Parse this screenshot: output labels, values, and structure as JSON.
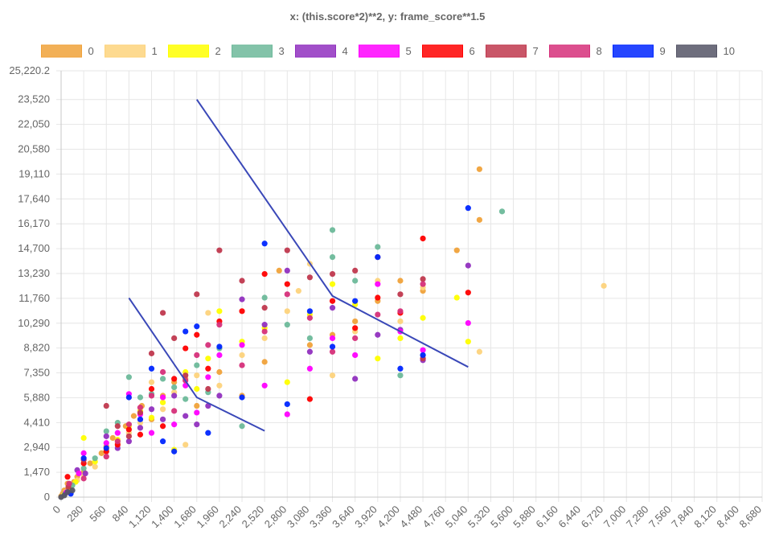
{
  "chart_data": {
    "type": "scatter",
    "title": "x: (this.score*2)**2, y: frame_score**1.5",
    "xlim": [
      0,
      8680
    ],
    "ylim": [
      0,
      25220.2
    ],
    "x_ticks": [
      "0",
      "280",
      "560",
      "840",
      "1,120",
      "1,400",
      "1,680",
      "1,960",
      "2,240",
      "2,520",
      "2,800",
      "3,080",
      "3,360",
      "3,640",
      "3,920",
      "4,200",
      "4,480",
      "4,760",
      "5,040",
      "5,320",
      "5,600",
      "5,880",
      "6,160",
      "6,440",
      "6,720",
      "7,000",
      "7,280",
      "7,560",
      "7,840",
      "8,120",
      "8,400",
      "8,680"
    ],
    "y_ticks": [
      "0",
      "1,470",
      "2,940",
      "4,410",
      "5,880",
      "7,350",
      "8,820",
      "10,290",
      "11,760",
      "13,230",
      "14,700",
      "16,170",
      "17,640",
      "19,110",
      "20,580",
      "22,050",
      "23,520",
      "25,220.2"
    ],
    "grid": true,
    "legend_position": "top",
    "series": [
      {
        "name": "0",
        "color": "#f0a23a",
        "points": [
          [
            0,
            50
          ],
          [
            20,
            200
          ],
          [
            40,
            400
          ],
          [
            80,
            800
          ],
          [
            100,
            500
          ],
          [
            160,
            900
          ],
          [
            200,
            1200
          ],
          [
            280,
            1500
          ],
          [
            360,
            2000
          ],
          [
            500,
            2600
          ],
          [
            560,
            3000
          ],
          [
            640,
            3500
          ],
          [
            800,
            4200
          ],
          [
            900,
            4800
          ],
          [
            1000,
            5400
          ],
          [
            1120,
            4600
          ],
          [
            1260,
            6000
          ],
          [
            1400,
            6800
          ],
          [
            1540,
            7000
          ],
          [
            1680,
            5400
          ],
          [
            1960,
            7400
          ],
          [
            2240,
            6000
          ],
          [
            2520,
            8000
          ],
          [
            2700,
            13400
          ],
          [
            3080,
            9000
          ],
          [
            3360,
            9600
          ],
          [
            3640,
            10400
          ],
          [
            3920,
            11600
          ],
          [
            4200,
            12800
          ],
          [
            4480,
            12200
          ],
          [
            4900,
            14600
          ],
          [
            5180,
            16400
          ],
          [
            5180,
            19400
          ]
        ]
      },
      {
        "name": "1",
        "color": "#fdd37c",
        "points": [
          [
            30,
            100
          ],
          [
            60,
            300
          ],
          [
            120,
            600
          ],
          [
            200,
            1000
          ],
          [
            280,
            1300
          ],
          [
            420,
            1800
          ],
          [
            560,
            2400
          ],
          [
            700,
            3200
          ],
          [
            840,
            3800
          ],
          [
            980,
            4400
          ],
          [
            1120,
            6800
          ],
          [
            1260,
            5200
          ],
          [
            1400,
            6200
          ],
          [
            1540,
            3100
          ],
          [
            1680,
            7200
          ],
          [
            1820,
            10900
          ],
          [
            1960,
            6600
          ],
          [
            2240,
            8400
          ],
          [
            2520,
            9400
          ],
          [
            2800,
            11000
          ],
          [
            2940,
            12200
          ],
          [
            3080,
            13800
          ],
          [
            3360,
            7200
          ],
          [
            3640,
            9800
          ],
          [
            3920,
            12800
          ],
          [
            4200,
            10400
          ],
          [
            4480,
            12400
          ],
          [
            5180,
            8600
          ],
          [
            6720,
            12500
          ]
        ]
      },
      {
        "name": "2",
        "color": "#ffff00",
        "points": [
          [
            40,
            150
          ],
          [
            100,
            500
          ],
          [
            180,
            900
          ],
          [
            280,
            3500
          ],
          [
            420,
            2100
          ],
          [
            560,
            2800
          ],
          [
            700,
            3400
          ],
          [
            840,
            4200
          ],
          [
            980,
            5100
          ],
          [
            1120,
            4700
          ],
          [
            1260,
            5600
          ],
          [
            1400,
            2800
          ],
          [
            1540,
            7400
          ],
          [
            1680,
            6400
          ],
          [
            1820,
            8200
          ],
          [
            1960,
            11000
          ],
          [
            2240,
            9200
          ],
          [
            2520,
            10000
          ],
          [
            2800,
            6800
          ],
          [
            3080,
            10800
          ],
          [
            3360,
            12600
          ],
          [
            3640,
            11400
          ],
          [
            3920,
            8200
          ],
          [
            4200,
            9400
          ],
          [
            4480,
            10600
          ],
          [
            4900,
            11800
          ],
          [
            5040,
            9200
          ]
        ]
      },
      {
        "name": "3",
        "color": "#6db99a",
        "points": [
          [
            50,
            200
          ],
          [
            140,
            700
          ],
          [
            280,
            1700
          ],
          [
            420,
            2300
          ],
          [
            560,
            3900
          ],
          [
            700,
            4400
          ],
          [
            840,
            7100
          ],
          [
            980,
            5900
          ],
          [
            1120,
            6100
          ],
          [
            1260,
            7000
          ],
          [
            1400,
            6500
          ],
          [
            1540,
            5800
          ],
          [
            1680,
            7800
          ],
          [
            1820,
            6200
          ],
          [
            1960,
            8800
          ],
          [
            2240,
            4200
          ],
          [
            2520,
            11800
          ],
          [
            2800,
            10200
          ],
          [
            3080,
            9400
          ],
          [
            3360,
            15800
          ],
          [
            3360,
            14200
          ],
          [
            3640,
            12800
          ],
          [
            3920,
            14800
          ],
          [
            4200,
            7200
          ],
          [
            4480,
            8400
          ],
          [
            5460,
            16900
          ]
        ]
      },
      {
        "name": "4",
        "color": "#9130bf",
        "points": [
          [
            60,
            250
          ],
          [
            200,
            1600
          ],
          [
            300,
            1400
          ],
          [
            560,
            3600
          ],
          [
            700,
            2900
          ],
          [
            840,
            3300
          ],
          [
            980,
            4100
          ],
          [
            1120,
            5200
          ],
          [
            1260,
            4600
          ],
          [
            1400,
            6000
          ],
          [
            1540,
            4800
          ],
          [
            1680,
            4300
          ],
          [
            1820,
            5400
          ],
          [
            1960,
            6000
          ],
          [
            2240,
            11700
          ],
          [
            2520,
            10200
          ],
          [
            2800,
            13400
          ],
          [
            3080,
            8600
          ],
          [
            3360,
            11200
          ],
          [
            3640,
            7000
          ],
          [
            3920,
            9600
          ],
          [
            4200,
            9900
          ],
          [
            4480,
            8100
          ],
          [
            5040,
            13700
          ]
        ]
      },
      {
        "name": "5",
        "color": "#ff00ff",
        "points": [
          [
            70,
            300
          ],
          [
            220,
            1400
          ],
          [
            280,
            2600
          ],
          [
            560,
            3200
          ],
          [
            700,
            3800
          ],
          [
            840,
            6100
          ],
          [
            980,
            4900
          ],
          [
            1120,
            3800
          ],
          [
            1260,
            5900
          ],
          [
            1400,
            4300
          ],
          [
            1540,
            6600
          ],
          [
            1680,
            5000
          ],
          [
            1820,
            7100
          ],
          [
            1960,
            8400
          ],
          [
            2240,
            9000
          ],
          [
            2520,
            6600
          ],
          [
            2800,
            4900
          ],
          [
            3080,
            7600
          ],
          [
            3360,
            9400
          ],
          [
            3640,
            8400
          ],
          [
            3920,
            12600
          ],
          [
            4200,
            9800
          ],
          [
            4480,
            8700
          ],
          [
            5040,
            10300
          ]
        ]
      },
      {
        "name": "6",
        "color": "#ff0000",
        "points": [
          [
            80,
            1200
          ],
          [
            280,
            2000
          ],
          [
            560,
            2700
          ],
          [
            700,
            3100
          ],
          [
            840,
            4000
          ],
          [
            980,
            3700
          ],
          [
            1120,
            6400
          ],
          [
            1260,
            4200
          ],
          [
            1400,
            7000
          ],
          [
            1540,
            8800
          ],
          [
            1680,
            9600
          ],
          [
            1820,
            7600
          ],
          [
            1960,
            10400
          ],
          [
            2240,
            11000
          ],
          [
            2520,
            13200
          ],
          [
            2800,
            12600
          ],
          [
            3080,
            5800
          ],
          [
            3360,
            11600
          ],
          [
            3640,
            10000
          ],
          [
            3920,
            11800
          ],
          [
            4200,
            10900
          ],
          [
            4480,
            15300
          ],
          [
            5040,
            12100
          ]
        ]
      },
      {
        "name": "7",
        "color": "#c0384e",
        "points": [
          [
            90,
            600
          ],
          [
            280,
            2200
          ],
          [
            560,
            5400
          ],
          [
            700,
            4200
          ],
          [
            840,
            3600
          ],
          [
            980,
            5000
          ],
          [
            1120,
            8500
          ],
          [
            1260,
            10900
          ],
          [
            1400,
            9400
          ],
          [
            1540,
            7200
          ],
          [
            1680,
            12000
          ],
          [
            1820,
            6400
          ],
          [
            1960,
            14600
          ],
          [
            2240,
            12800
          ],
          [
            2520,
            11200
          ],
          [
            2800,
            14600
          ],
          [
            3080,
            13000
          ],
          [
            3360,
            13200
          ],
          [
            3640,
            13400
          ],
          [
            3920,
            14200
          ],
          [
            4200,
            12000
          ],
          [
            4480,
            12900
          ],
          [
            4480,
            8200
          ]
        ]
      },
      {
        "name": "8",
        "color": "#d6307a",
        "points": [
          [
            100,
            800
          ],
          [
            280,
            1100
          ],
          [
            560,
            2400
          ],
          [
            700,
            3300
          ],
          [
            840,
            4300
          ],
          [
            980,
            5300
          ],
          [
            1120,
            6000
          ],
          [
            1260,
            7400
          ],
          [
            1400,
            5100
          ],
          [
            1540,
            6900
          ],
          [
            1680,
            8400
          ],
          [
            1820,
            9000
          ],
          [
            1960,
            10200
          ],
          [
            2240,
            7800
          ],
          [
            2520,
            9800
          ],
          [
            2800,
            12000
          ],
          [
            3080,
            10600
          ],
          [
            3360,
            8600
          ],
          [
            3640,
            9400
          ],
          [
            3920,
            10800
          ],
          [
            4200,
            11000
          ],
          [
            4480,
            12600
          ]
        ]
      },
      {
        "name": "9",
        "color": "#0026ff",
        "points": [
          [
            120,
            200
          ],
          [
            280,
            2300
          ],
          [
            560,
            2900
          ],
          [
            840,
            5900
          ],
          [
            980,
            4600
          ],
          [
            1120,
            7600
          ],
          [
            1260,
            3300
          ],
          [
            1400,
            2700
          ],
          [
            1540,
            9800
          ],
          [
            1680,
            10100
          ],
          [
            1820,
            3800
          ],
          [
            1960,
            8900
          ],
          [
            2240,
            5900
          ],
          [
            2520,
            15000
          ],
          [
            2800,
            5500
          ],
          [
            3080,
            11000
          ],
          [
            3360,
            8900
          ],
          [
            3640,
            11600
          ],
          [
            3920,
            14200
          ],
          [
            4200,
            7600
          ],
          [
            4480,
            8400
          ],
          [
            5040,
            17100
          ]
        ]
      },
      {
        "name": "10",
        "color": "#555566",
        "points": [
          [
            0,
            0
          ],
          [
            40,
            100
          ],
          [
            80,
            300
          ],
          [
            140,
            400
          ]
        ]
      }
    ],
    "lines": [
      {
        "color": "#3a48b8",
        "points": [
          [
            840,
            11780
          ],
          [
            1680,
            5900
          ],
          [
            2520,
            3920
          ]
        ]
      },
      {
        "color": "#3a48b8",
        "points": [
          [
            1680,
            23520
          ],
          [
            3360,
            11900
          ],
          [
            5040,
            7700
          ]
        ]
      }
    ]
  }
}
